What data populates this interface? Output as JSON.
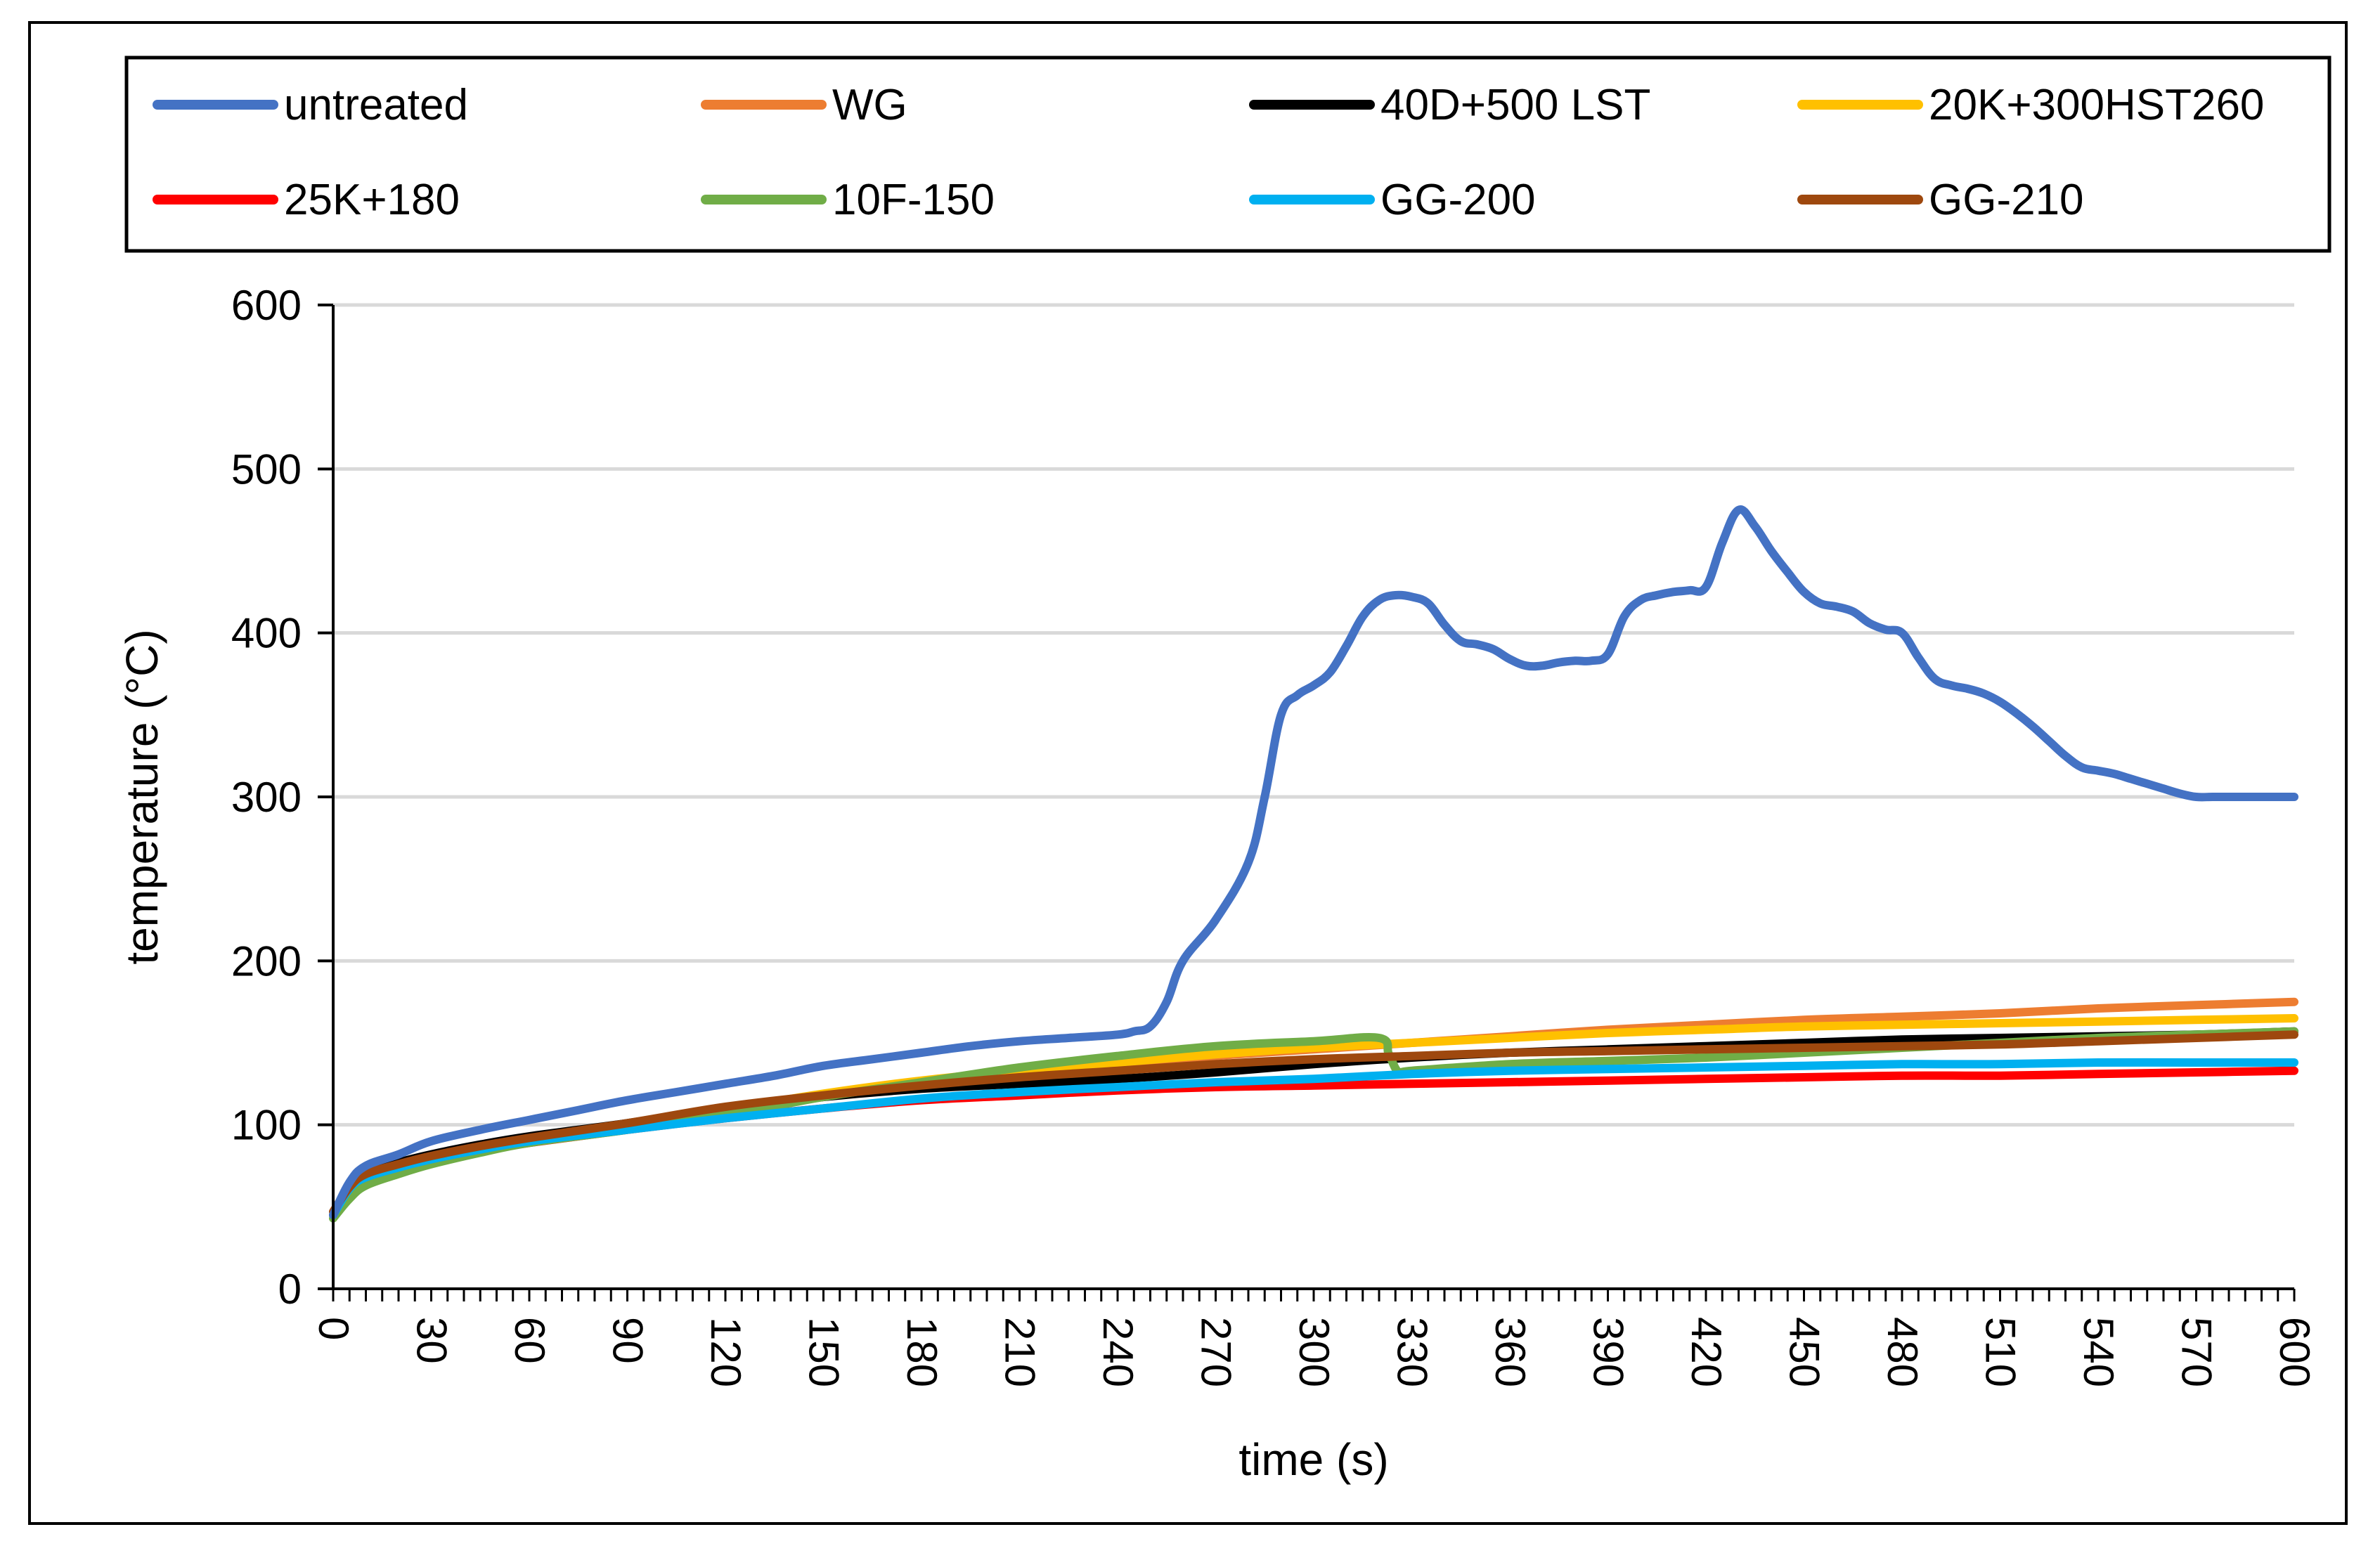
{
  "chart_data": {
    "type": "line",
    "title": "",
    "xlabel": "time (s)",
    "ylabel": "temperature (°C)",
    "xlim": [
      0,
      600
    ],
    "ylim": [
      0,
      600
    ],
    "xticks": [
      "0",
      "30",
      "60",
      "90",
      "120",
      "150",
      "180",
      "210",
      "240",
      "270",
      "300",
      "330",
      "360",
      "390",
      "420",
      "450",
      "480",
      "510",
      "540",
      "570",
      "600"
    ],
    "yticks": [
      "0",
      "100",
      "200",
      "300",
      "400",
      "500",
      "600"
    ],
    "grid": "horizontal",
    "legend_position": "top",
    "series": [
      {
        "name": "untreated",
        "color": "#4472C4",
        "x": [
          0,
          5,
          10,
          20,
          30,
          45,
          60,
          75,
          90,
          105,
          120,
          135,
          150,
          165,
          180,
          195,
          210,
          225,
          240,
          245,
          250,
          255,
          260,
          270,
          280,
          285,
          290,
          295,
          300,
          305,
          310,
          315,
          320,
          325,
          330,
          335,
          340,
          345,
          350,
          355,
          360,
          365,
          370,
          375,
          380,
          385,
          390,
          395,
          400,
          405,
          410,
          415,
          420,
          425,
          430,
          435,
          440,
          445,
          450,
          455,
          460,
          465,
          470,
          475,
          480,
          485,
          490,
          495,
          500,
          505,
          510,
          515,
          520,
          525,
          530,
          535,
          540,
          545,
          550,
          555,
          560,
          565,
          570,
          575,
          580,
          585,
          590,
          595,
          600
        ],
        "y": [
          45,
          65,
          75,
          82,
          90,
          97,
          103,
          109,
          115,
          120,
          125,
          130,
          136,
          140,
          144,
          148,
          151,
          153,
          155,
          157,
          160,
          175,
          200,
          225,
          260,
          300,
          350,
          362,
          368,
          376,
          392,
          410,
          420,
          423,
          422,
          418,
          405,
          395,
          393,
          390,
          384,
          380,
          380,
          382,
          383,
          383,
          387,
          410,
          420,
          423,
          425,
          426,
          428,
          455,
          475,
          465,
          450,
          437,
          425,
          418,
          416,
          413,
          406,
          402,
          400,
          385,
          372,
          368,
          366,
          363,
          358,
          351,
          343,
          334,
          325,
          318,
          316,
          314,
          311,
          308,
          305,
          302,
          300,
          300,
          300,
          300,
          300,
          300,
          300
        ]
      },
      {
        "name": "WG",
        "color": "#ED7D31",
        "x": [
          0,
          5,
          10,
          20,
          30,
          45,
          60,
          90,
          120,
          150,
          180,
          210,
          240,
          270,
          300,
          330,
          360,
          390,
          420,
          450,
          480,
          510,
          540,
          570,
          600
        ],
        "y": [
          45,
          60,
          68,
          74,
          80,
          85,
          90,
          98,
          108,
          117,
          125,
          131,
          136,
          142,
          146,
          150,
          154,
          158,
          161,
          164,
          166,
          168,
          171,
          173,
          175
        ]
      },
      {
        "name": "40D+500 LST",
        "color": "#000000",
        "x": [
          0,
          5,
          10,
          20,
          30,
          45,
          60,
          90,
          120,
          150,
          180,
          210,
          240,
          270,
          300,
          330,
          360,
          390,
          420,
          450,
          480,
          510,
          540,
          570,
          600
        ],
        "y": [
          45,
          62,
          70,
          77,
          82,
          88,
          93,
          101,
          110,
          117,
          122,
          125,
          128,
          132,
          137,
          141,
          144,
          146,
          148,
          150,
          152,
          153,
          154,
          155,
          157
        ]
      },
      {
        "name": "20K+300HST260",
        "color": "#FFC000",
        "x": [
          0,
          5,
          10,
          20,
          30,
          45,
          60,
          90,
          120,
          150,
          180,
          210,
          240,
          270,
          300,
          330,
          360,
          390,
          420,
          450,
          480,
          510,
          540,
          570,
          600
        ],
        "y": [
          45,
          61,
          69,
          75,
          80,
          86,
          91,
          99,
          109,
          119,
          127,
          133,
          138,
          143,
          147,
          150,
          153,
          156,
          158,
          160,
          161,
          162,
          163,
          164,
          165
        ]
      },
      {
        "name": "25K+180",
        "color": "#FF0000",
        "x": [
          0,
          5,
          10,
          20,
          30,
          45,
          60,
          90,
          120,
          150,
          180,
          210,
          240,
          270,
          300,
          330,
          360,
          390,
          420,
          450,
          480,
          510,
          540,
          570,
          600
        ],
        "y": [
          45,
          60,
          67,
          73,
          78,
          84,
          89,
          97,
          104,
          110,
          115,
          118,
          121,
          123,
          124,
          125,
          126,
          127,
          128,
          129,
          130,
          130,
          131,
          132,
          133
        ]
      },
      {
        "name": "10F-150",
        "color": "#70AD47",
        "x": [
          0,
          5,
          10,
          20,
          30,
          45,
          60,
          90,
          120,
          150,
          180,
          210,
          240,
          270,
          300,
          320,
          323,
          326,
          330,
          360,
          390,
          420,
          450,
          480,
          510,
          540,
          570,
          600
        ],
        "y": [
          43,
          55,
          63,
          70,
          76,
          83,
          89,
          97,
          106,
          117,
          126,
          135,
          142,
          148,
          151,
          153,
          143,
          132,
          133,
          137,
          139,
          141,
          144,
          147,
          150,
          153,
          155,
          157
        ]
      },
      {
        "name": "GG-200",
        "color": "#00B0F0",
        "x": [
          0,
          5,
          10,
          20,
          30,
          45,
          60,
          90,
          120,
          150,
          180,
          210,
          240,
          270,
          300,
          330,
          360,
          390,
          420,
          450,
          480,
          510,
          540,
          570,
          600
        ],
        "y": [
          45,
          61,
          68,
          74,
          79,
          85,
          90,
          97,
          104,
          110,
          116,
          120,
          123,
          126,
          128,
          131,
          133,
          134,
          135,
          136,
          137,
          137,
          138,
          138,
          138
        ]
      },
      {
        "name": "GG-210",
        "color": "#9E480E",
        "x": [
          0,
          5,
          10,
          20,
          30,
          45,
          60,
          90,
          120,
          150,
          180,
          210,
          240,
          270,
          300,
          330,
          360,
          390,
          420,
          450,
          480,
          510,
          540,
          570,
          600
        ],
        "y": [
          47,
          62,
          70,
          76,
          81,
          87,
          92,
          101,
          111,
          118,
          124,
          129,
          133,
          137,
          140,
          142,
          144,
          145,
          146,
          147,
          148,
          149,
          151,
          153,
          155
        ]
      }
    ]
  }
}
